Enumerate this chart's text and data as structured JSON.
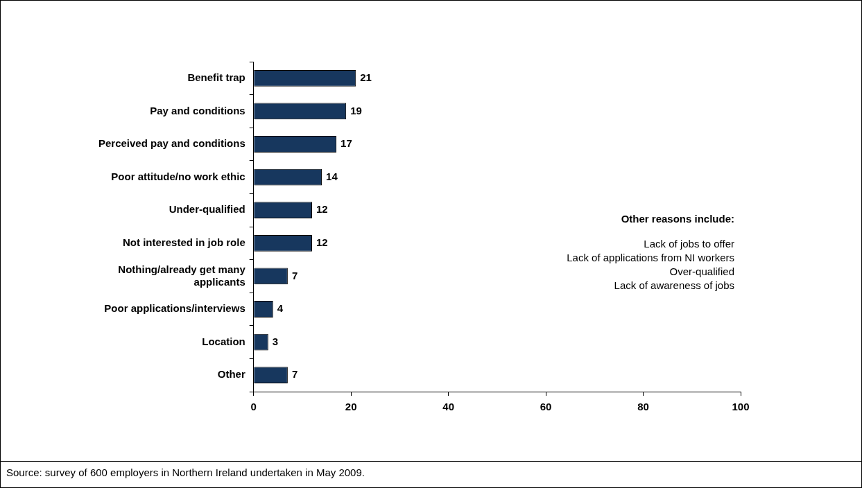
{
  "chart_data": {
    "type": "bar",
    "orientation": "horizontal",
    "categories": [
      "Benefit trap",
      "Pay and conditions",
      "Perceived pay and conditions",
      "Poor attitude/no work ethic",
      "Under-qualified",
      "Not interested in job role",
      "Nothing/already get many applicants",
      "Poor applications/interviews",
      "Location",
      "Other"
    ],
    "values": [
      21,
      19,
      17,
      14,
      12,
      12,
      7,
      4,
      3,
      7
    ],
    "color": "#17375e",
    "xlim": [
      0,
      100
    ],
    "xticks": [
      0,
      20,
      40,
      60,
      80,
      100
    ],
    "grid": false,
    "legend": false,
    "data_labels": true,
    "annotations": [
      "Other reasons include:",
      "Lack of jobs to offer",
      "Lack of applications from NI workers",
      "Over-qualified",
      "Lack of awareness of jobs",
      "Source: survey of 600 employers in Northern Ireland undertaken in May 2009."
    ]
  }
}
